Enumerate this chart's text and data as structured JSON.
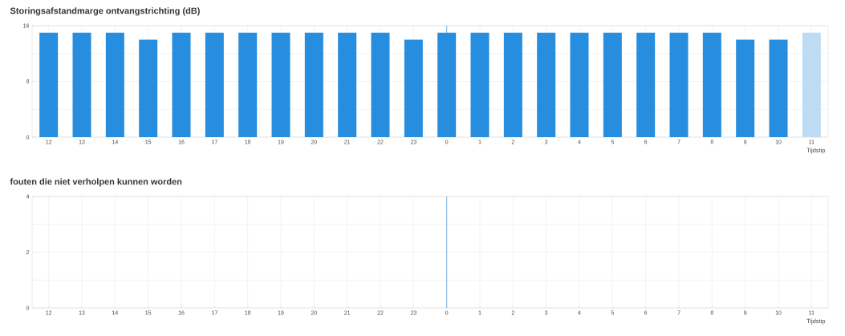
{
  "chart_data": [
    {
      "type": "bar",
      "title": "Storingsafstandmarge ontvangstrichting (dB)",
      "xlabel": "Tijdstip",
      "categories": [
        "12",
        "13",
        "14",
        "15",
        "16",
        "17",
        "18",
        "19",
        "20",
        "21",
        "22",
        "23",
        "0",
        "1",
        "2",
        "3",
        "4",
        "5",
        "6",
        "7",
        "8",
        "9",
        "10",
        "11"
      ],
      "values": [
        15,
        15,
        15,
        14,
        15,
        15,
        15,
        15,
        15,
        15,
        15,
        14,
        15,
        15,
        15,
        15,
        15,
        15,
        15,
        15,
        15,
        14,
        14,
        15
      ],
      "colors": [
        "#268ddf",
        "#268ddf",
        "#268ddf",
        "#268ddf",
        "#268ddf",
        "#268ddf",
        "#268ddf",
        "#268ddf",
        "#268ddf",
        "#268ddf",
        "#268ddf",
        "#268ddf",
        "#268ddf",
        "#268ddf",
        "#268ddf",
        "#268ddf",
        "#268ddf",
        "#268ddf",
        "#268ddf",
        "#268ddf",
        "#268ddf",
        "#268ddf",
        "#268ddf",
        "#bddcf3"
      ],
      "ylim": [
        0,
        16
      ],
      "yticks": [
        0,
        {
          "value": 4,
          "label": null
        },
        8,
        {
          "value": 12,
          "label": null
        },
        16
      ],
      "ref_lines": [
        {
          "axis": "x",
          "value": "0",
          "color": "#7aaee0"
        }
      ],
      "grid": true
    },
    {
      "type": "bar",
      "title": "fouten die niet verholpen kunnen worden",
      "xlabel": "Tijdstip",
      "categories": [
        "12",
        "13",
        "14",
        "15",
        "16",
        "17",
        "18",
        "19",
        "20",
        "21",
        "22",
        "23",
        "0",
        "1",
        "2",
        "3",
        "4",
        "5",
        "6",
        "7",
        "8",
        "9",
        "10",
        "11"
      ],
      "values": [
        null,
        null,
        null,
        null,
        null,
        null,
        null,
        null,
        null,
        null,
        null,
        null,
        null,
        null,
        null,
        null,
        null,
        null,
        null,
        null,
        null,
        null,
        null,
        null
      ],
      "ylim": [
        0,
        4
      ],
      "yticks": [
        0,
        {
          "value": 1,
          "label": null
        },
        2,
        {
          "value": 3,
          "label": null
        },
        4
      ],
      "ref_lines": [
        {
          "axis": "x",
          "value": "0",
          "color": "#7aaee0"
        }
      ],
      "grid": true
    }
  ]
}
